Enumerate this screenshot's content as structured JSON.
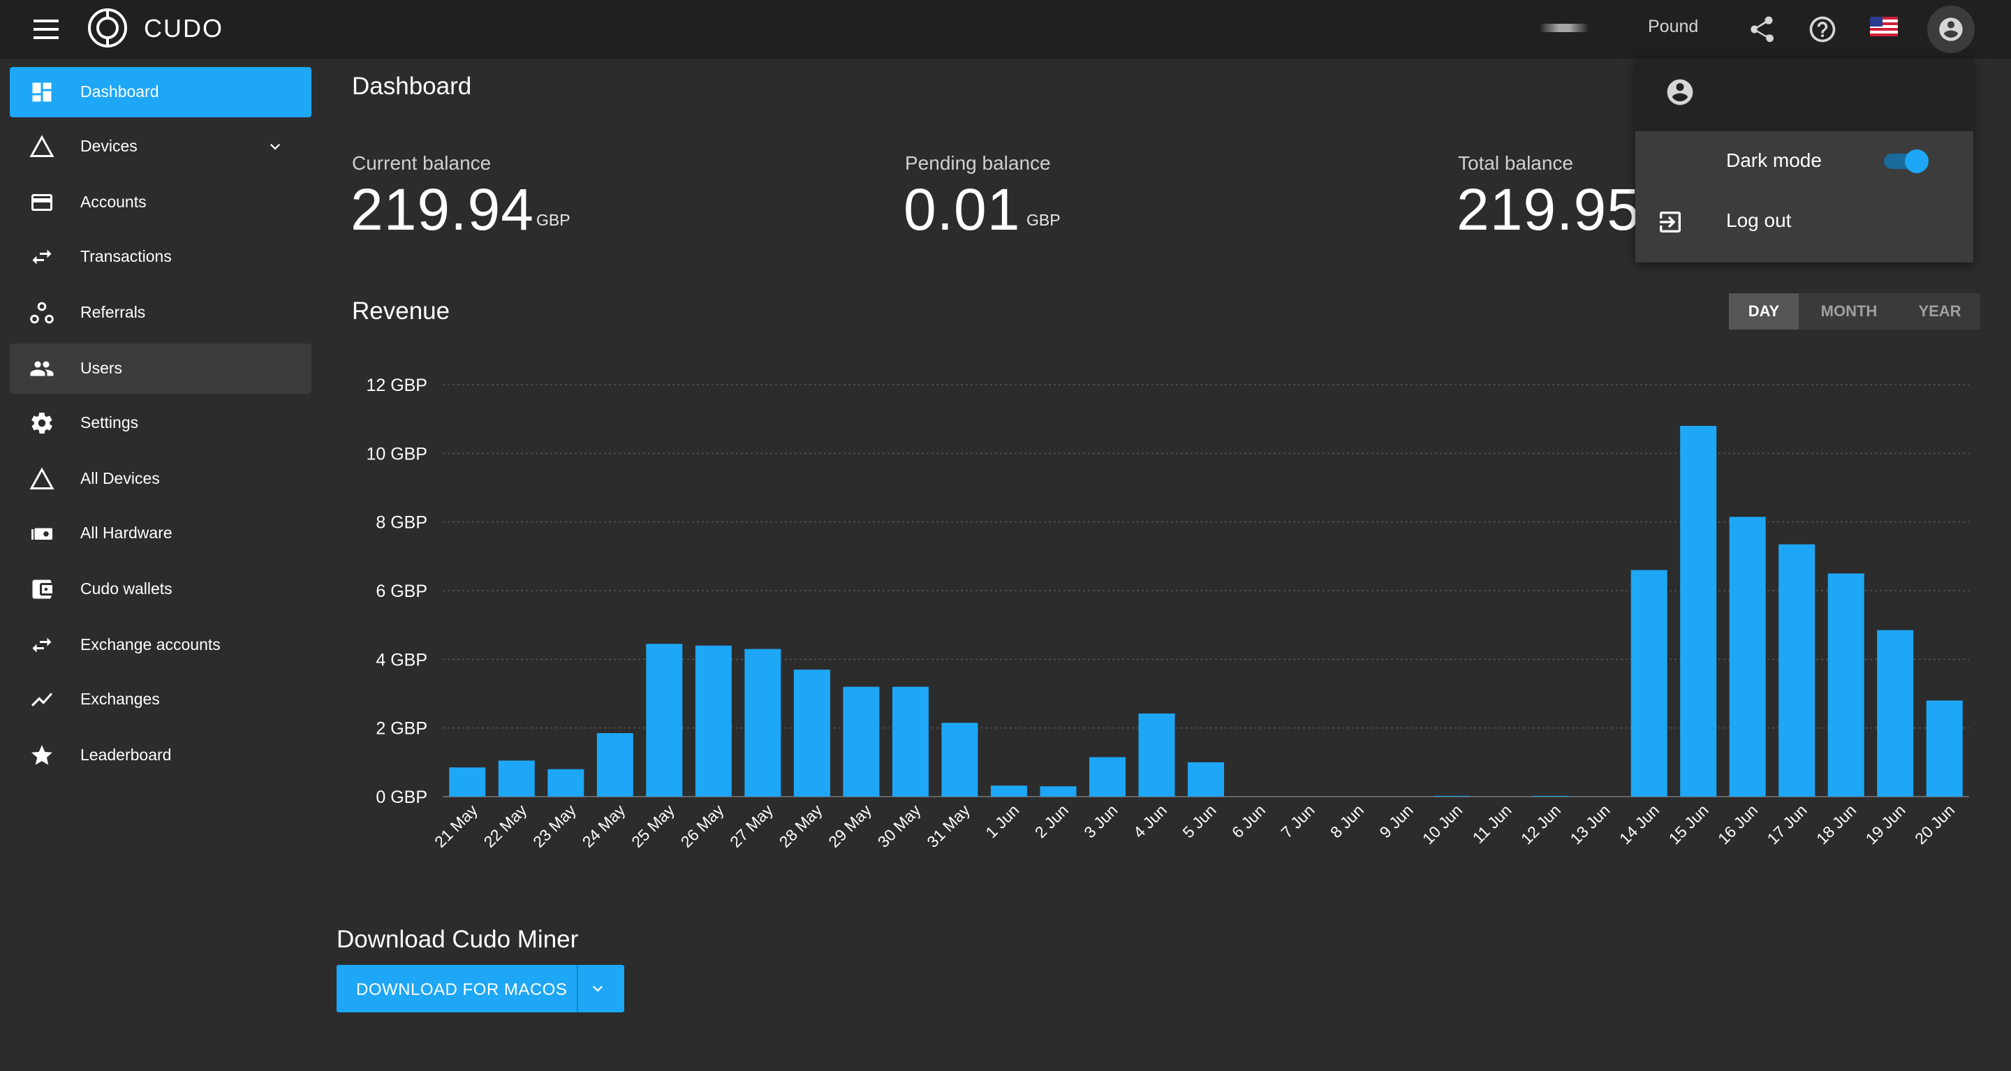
{
  "app": {
    "brand": "CUDO",
    "currency": "Pound"
  },
  "sidebar": {
    "items": [
      {
        "label": "Dashboard",
        "icon": "dashboard-icon"
      },
      {
        "label": "Devices",
        "icon": "triangle-icon"
      },
      {
        "label": "Accounts",
        "icon": "card-icon"
      },
      {
        "label": "Transactions",
        "icon": "swap-icon"
      },
      {
        "label": "Referrals",
        "icon": "referral-icon"
      },
      {
        "label": "Users",
        "icon": "people-icon"
      },
      {
        "label": "Settings",
        "icon": "gear-icon"
      },
      {
        "label": "All Devices",
        "icon": "triangle-icon"
      },
      {
        "label": "All Hardware",
        "icon": "hardware-icon"
      },
      {
        "label": "Cudo wallets",
        "icon": "wallet-icon"
      },
      {
        "label": "Exchange accounts",
        "icon": "swap-icon"
      },
      {
        "label": "Exchanges",
        "icon": "trend-icon"
      },
      {
        "label": "Leaderboard",
        "icon": "star-icon"
      }
    ]
  },
  "main": {
    "title": "Dashboard",
    "balances": [
      {
        "label": "Current balance",
        "value": "219.94",
        "unit": "GBP"
      },
      {
        "label": "Pending balance",
        "value": "0.01",
        "unit": "GBP"
      },
      {
        "label": "Total balance",
        "value": "219.95",
        "unit": ""
      }
    ],
    "revenue_title": "Revenue",
    "ranges": [
      "DAY",
      "MONTH",
      "YEAR"
    ],
    "active_range": "DAY",
    "download_title": "Download Cudo Miner",
    "download_button": "DOWNLOAD FOR MACOS"
  },
  "user_menu": {
    "dark_mode_label": "Dark mode",
    "dark_mode_on": true,
    "logout_label": "Log out"
  },
  "colors": {
    "accent": "#1ea7f6",
    "background": "#2c2c2c",
    "topbar": "#202020"
  },
  "chart_data": {
    "type": "bar",
    "title": "",
    "xlabel": "",
    "ylabel": "",
    "ylim": [
      0,
      12
    ],
    "yticks": [
      "0 GBP",
      "2 GBP",
      "4 GBP",
      "6 GBP",
      "8 GBP",
      "10 GBP",
      "12 GBP"
    ],
    "categories": [
      "21 May",
      "22 May",
      "23 May",
      "24 May",
      "25 May",
      "26 May",
      "27 May",
      "28 May",
      "29 May",
      "30 May",
      "31 May",
      "1 Jun",
      "2 Jun",
      "3 Jun",
      "4 Jun",
      "5 Jun",
      "6 Jun",
      "7 Jun",
      "8 Jun",
      "9 Jun",
      "10 Jun",
      "11 Jun",
      "12 Jun",
      "13 Jun",
      "14 Jun",
      "15 Jun",
      "16 Jun",
      "17 Jun",
      "18 Jun",
      "19 Jun",
      "20 Jun"
    ],
    "values": [
      0.85,
      1.05,
      0.8,
      1.85,
      4.45,
      4.4,
      4.3,
      3.7,
      3.2,
      3.2,
      2.15,
      0.32,
      0.3,
      1.15,
      2.42,
      1.0,
      0,
      0,
      0,
      0,
      0.02,
      0,
      0.02,
      0,
      6.6,
      10.8,
      8.15,
      7.35,
      6.5,
      4.85,
      2.8
    ],
    "grid": true,
    "color": "#1ea7f6"
  }
}
